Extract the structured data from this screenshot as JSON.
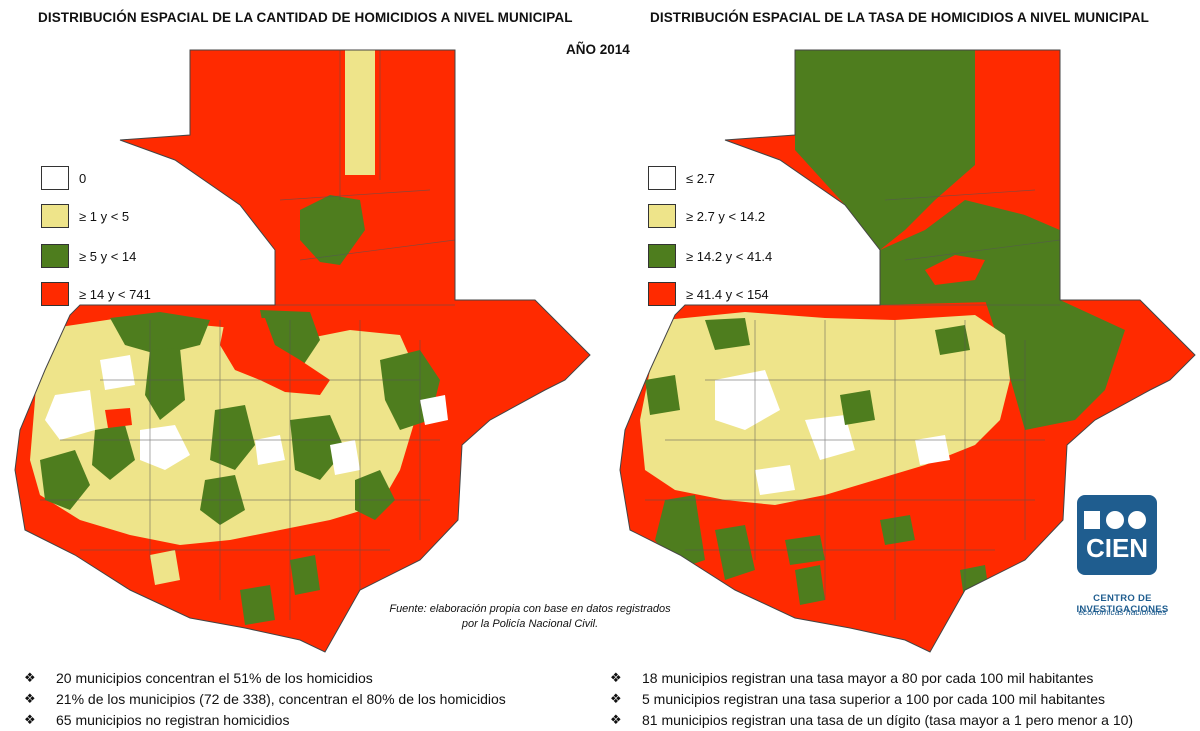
{
  "titles": {
    "left": "DISTRIBUCIÓN ESPACIAL DE LA CANTIDAD DE  HOMICIDIOS A NIVEL MUNICIPAL",
    "right": "DISTRIBUCIÓN ESPACIAL DE LA TASA DE  HOMICIDIOS A NIVEL MUNICIPAL",
    "year": "AÑO 2014"
  },
  "colors": {
    "white": "#ffffff",
    "yellow": "#eee48a",
    "green": "#4e7d1e",
    "red": "#ff2a00",
    "border": "#555555"
  },
  "legend_left": [
    {
      "label": "0",
      "color": "#ffffff"
    },
    {
      "label": "≥ 1 y < 5",
      "color": "#eee48a"
    },
    {
      "label": "≥ 5 y < 14",
      "color": "#4e7d1e"
    },
    {
      "label": "≥ 14 y < 741",
      "color": "#ff2a00"
    }
  ],
  "legend_right": [
    {
      "label": "≤ 2.7",
      "color": "#ffffff"
    },
    {
      "label": "≥ 2.7 y < 14.2",
      "color": "#eee48a"
    },
    {
      "label": "≥ 14.2 y < 41.4",
      "color": "#4e7d1e"
    },
    {
      "label": "≥ 41.4 y < 154",
      "color": "#ff2a00"
    }
  ],
  "source": {
    "line1": "Fuente: elaboración propia con base en datos registrados",
    "line2": "por la Policía Nacional Civil."
  },
  "logo": {
    "text": "CIEN",
    "name": "CENTRO DE INVESTIGACIONES",
    "sub": "económicas nacionales"
  },
  "bullet_mark": "❖",
  "bullets_left": [
    "20 municipios concentran el 51% de los homicidios",
    "21% de los municipios (72 de 338), concentran el 80% de los homicidios",
    "65 municipios no registran homicidios"
  ],
  "bullets_right": [
    "18 municipios registran una tasa mayor a 80 por cada 100 mil habitantes",
    "5 municipios registran una tasa superior a 100 por cada 100 mil habitantes",
    "81 municipios registran una tasa de un dígito (tasa mayor a 1 pero menor a 10)"
  ]
}
